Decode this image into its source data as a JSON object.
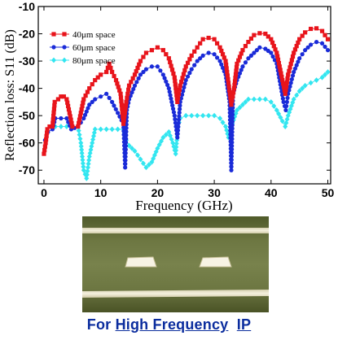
{
  "chart_data": {
    "type": "scatter",
    "xlabel": "Frequency (GHz)",
    "ylabel": "Reflection loss: S11 (dB)",
    "xlim": [
      -1,
      50.5
    ],
    "ylim": [
      -75,
      -10
    ],
    "xticks": [
      "0",
      "10",
      "20",
      "30",
      "40",
      "50"
    ],
    "yticks": [
      "-10",
      "-20",
      "-30",
      "-40",
      "-50",
      "-60",
      "-70"
    ],
    "grid": false,
    "legend_position": "top-left",
    "series": [
      {
        "name": "40μm space",
        "color": "#e8141b",
        "marker": "square",
        "points": [
          [
            0,
            -64
          ],
          [
            0.3,
            -60
          ],
          [
            0.6,
            -55
          ],
          [
            1,
            -54
          ],
          [
            1.5,
            -54
          ],
          [
            1.9,
            -45
          ],
          [
            2.5,
            -44
          ],
          [
            3,
            -43
          ],
          [
            3.5,
            -43
          ],
          [
            4,
            -44
          ],
          [
            5,
            -54
          ],
          [
            6,
            -54
          ],
          [
            7,
            -44
          ],
          [
            8,
            -40
          ],
          [
            9,
            -37
          ],
          [
            10,
            -35
          ],
          [
            11,
            -34
          ],
          [
            11.5,
            -31
          ],
          [
            12,
            -34
          ],
          [
            12.7,
            -37
          ],
          [
            13.5,
            -42
          ],
          [
            14,
            -53
          ],
          [
            14.5,
            -45
          ],
          [
            15,
            -39
          ],
          [
            16,
            -35
          ],
          [
            17,
            -30
          ],
          [
            18,
            -27
          ],
          [
            19,
            -26
          ],
          [
            20,
            -25
          ],
          [
            21,
            -26
          ],
          [
            22,
            -29
          ],
          [
            23,
            -36
          ],
          [
            23.5,
            -45
          ],
          [
            24,
            -39
          ],
          [
            25,
            -32
          ],
          [
            26,
            -28
          ],
          [
            27,
            -25
          ],
          [
            28,
            -22
          ],
          [
            29,
            -21.5
          ],
          [
            30,
            -22
          ],
          [
            31,
            -25
          ],
          [
            32,
            -30
          ],
          [
            33,
            -46
          ],
          [
            33.5,
            -40
          ],
          [
            34,
            -31
          ],
          [
            35,
            -26
          ],
          [
            36,
            -23
          ],
          [
            37,
            -20.5
          ],
          [
            38,
            -19.8
          ],
          [
            39,
            -20
          ],
          [
            40,
            -22
          ],
          [
            41,
            -27
          ],
          [
            42.5,
            -42
          ],
          [
            43,
            -35
          ],
          [
            44,
            -27
          ],
          [
            45,
            -22
          ],
          [
            46,
            -19.5
          ],
          [
            47,
            -18.2
          ],
          [
            48,
            -18
          ],
          [
            49,
            -19
          ],
          [
            50,
            -22
          ]
        ]
      },
      {
        "name": "60μm space",
        "color": "#1a2bd8",
        "marker": "circle",
        "points": [
          [
            0.2,
            -59
          ],
          [
            0.7,
            -56
          ],
          [
            1.5,
            -55
          ],
          [
            2,
            -51
          ],
          [
            3,
            -51
          ],
          [
            4,
            -51
          ],
          [
            4.8,
            -55
          ],
          [
            6,
            -54
          ],
          [
            7,
            -51
          ],
          [
            8,
            -46
          ],
          [
            9,
            -44
          ],
          [
            10,
            -43
          ],
          [
            11,
            -42
          ],
          [
            12,
            -45
          ],
          [
            13,
            -49
          ],
          [
            14,
            -53
          ],
          [
            14.3,
            -69
          ],
          [
            14.6,
            -48
          ],
          [
            15,
            -44
          ],
          [
            16,
            -39
          ],
          [
            17,
            -35
          ],
          [
            18,
            -33
          ],
          [
            19,
            -32
          ],
          [
            20,
            -32
          ],
          [
            21,
            -35
          ],
          [
            22,
            -40
          ],
          [
            23,
            -50
          ],
          [
            23.5,
            -58
          ],
          [
            24,
            -45
          ],
          [
            25,
            -37
          ],
          [
            26,
            -33
          ],
          [
            27,
            -30
          ],
          [
            28,
            -28
          ],
          [
            29,
            -27
          ],
          [
            30,
            -27.5
          ],
          [
            31,
            -30
          ],
          [
            32,
            -35
          ],
          [
            32.7,
            -45
          ],
          [
            33,
            -70
          ],
          [
            33.3,
            -42
          ],
          [
            34,
            -37
          ],
          [
            35,
            -32
          ],
          [
            36,
            -29
          ],
          [
            37,
            -27
          ],
          [
            38,
            -25
          ],
          [
            39,
            -25.5
          ],
          [
            40,
            -27
          ],
          [
            41,
            -31
          ],
          [
            42.2,
            -45
          ],
          [
            42.6,
            -48
          ],
          [
            43,
            -42
          ],
          [
            44,
            -34
          ],
          [
            45,
            -29
          ],
          [
            46,
            -26
          ],
          [
            47,
            -24
          ],
          [
            48,
            -23
          ],
          [
            49,
            -23.5
          ],
          [
            50,
            -26
          ]
        ]
      },
      {
        "name": "80μm space",
        "color": "#33e6f0",
        "marker": "diamond",
        "points": [
          [
            2,
            -54
          ],
          [
            3,
            -54
          ],
          [
            4,
            -54
          ],
          [
            5,
            -54
          ],
          [
            6,
            -54
          ],
          [
            6.5,
            -60
          ],
          [
            7,
            -70
          ],
          [
            7.5,
            -73
          ],
          [
            8,
            -65
          ],
          [
            9,
            -55
          ],
          [
            10,
            -55
          ],
          [
            11,
            -55
          ],
          [
            12,
            -55
          ],
          [
            13,
            -55
          ],
          [
            14,
            -55
          ],
          [
            14.5,
            -59
          ],
          [
            15,
            -61
          ],
          [
            16,
            -63
          ],
          [
            17,
            -66
          ],
          [
            18,
            -69
          ],
          [
            19,
            -67
          ],
          [
            20,
            -62
          ],
          [
            21,
            -58
          ],
          [
            22,
            -56
          ],
          [
            22.7,
            -60
          ],
          [
            23.2,
            -64
          ],
          [
            23.6,
            -54
          ],
          [
            24,
            -51
          ],
          [
            25,
            -50
          ],
          [
            26,
            -50
          ],
          [
            27,
            -50
          ],
          [
            28,
            -50
          ],
          [
            29,
            -50
          ],
          [
            30,
            -50
          ],
          [
            31,
            -51
          ],
          [
            32,
            -54
          ],
          [
            32.5,
            -58
          ],
          [
            33,
            -54
          ],
          [
            34,
            -48
          ],
          [
            35,
            -46
          ],
          [
            36,
            -44
          ],
          [
            37,
            -44
          ],
          [
            38,
            -44
          ],
          [
            39,
            -44
          ],
          [
            40,
            -45
          ],
          [
            41,
            -48
          ],
          [
            42,
            -52
          ],
          [
            42.5,
            -54
          ],
          [
            43,
            -50
          ],
          [
            44,
            -44
          ],
          [
            45,
            -41
          ],
          [
            46,
            -39
          ],
          [
            47,
            -38
          ],
          [
            48,
            -37
          ],
          [
            49,
            -36
          ],
          [
            50,
            -34
          ]
        ]
      }
    ]
  },
  "caption": {
    "prefix": "For ",
    "underlined": "High Frequency",
    "suffix": "IP"
  }
}
